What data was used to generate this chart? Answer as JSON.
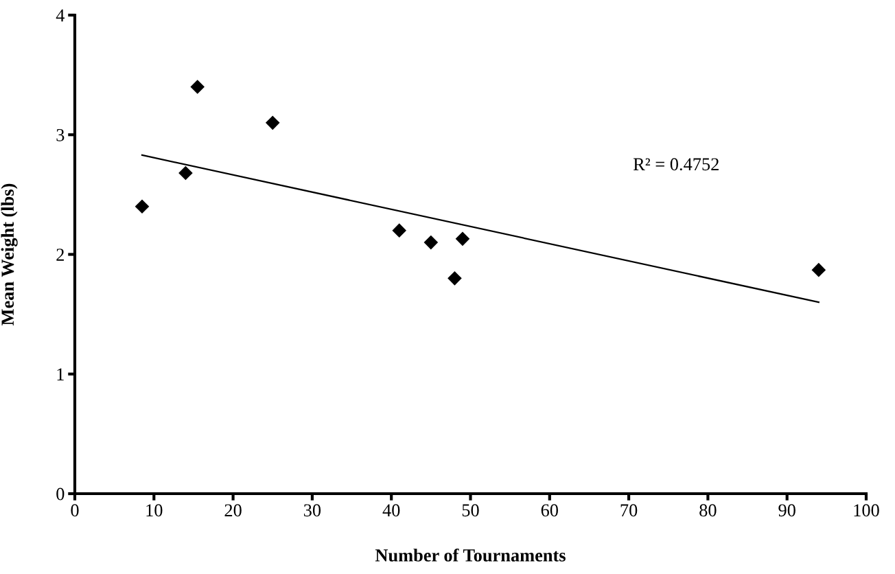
{
  "chart_data": {
    "type": "scatter",
    "xlabel": "Number of Tournaments",
    "ylabel": "Mean Weight (lbs)",
    "x": [
      8.5,
      14,
      15.5,
      25,
      41,
      45,
      49,
      48,
      94
    ],
    "series": [
      {
        "color": "#000000",
        "values": [
          2.4,
          2.68,
          3.4,
          3.1,
          2.2,
          2.1,
          2.13,
          1.8,
          1.87
        ],
        "marker": "diamond"
      },
      {
        "type": "line",
        "color": "#000000",
        "x": [
          8.5,
          94
        ],
        "values": [
          2.83,
          1.6
        ],
        "marker": "none",
        "line_style": "solid"
      }
    ],
    "annotations": [
      "R² = 0.4752"
    ],
    "xlim": [
      0,
      100
    ],
    "xticks": [
      0,
      10,
      20,
      30,
      40,
      50,
      60,
      70,
      80,
      90,
      100
    ],
    "ylim": [
      0,
      4
    ],
    "yticks": [
      0,
      1,
      2,
      3,
      4
    ],
    "grid": false,
    "legend": false
  }
}
